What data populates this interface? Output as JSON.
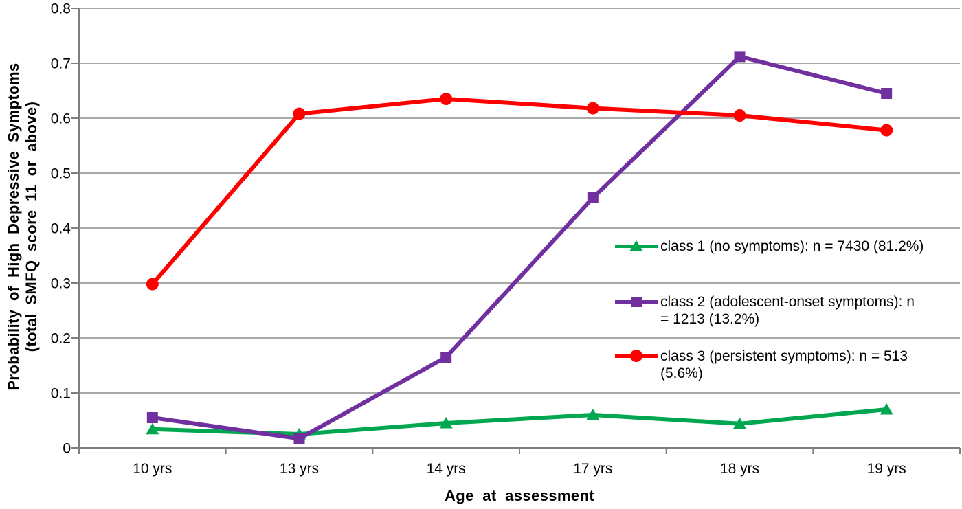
{
  "chart_data": {
    "type": "line",
    "title": "",
    "xlabel": "Age at assessment",
    "ylabel": "Probability of High Depressive Symptoms (total SMFQ score 11 or above)",
    "ylabel_lines": [
      "Probability of High Depressive Symptoms",
      "(total SMFQ score 11 or above)"
    ],
    "categories": [
      "10 yrs",
      "13 yrs",
      "14 yrs",
      "17 yrs",
      "18 yrs",
      "19 yrs"
    ],
    "ylim": [
      0,
      0.8
    ],
    "yticks": [
      0,
      0.1,
      0.2,
      0.3,
      0.4,
      0.5,
      0.6,
      0.7,
      0.8
    ],
    "ytick_labels": [
      "0",
      "0.1",
      "0.2",
      "0.3",
      "0.4",
      "0.5",
      "0.6",
      "0.7",
      "0.8"
    ],
    "grid": true,
    "legend_position": "middle-right",
    "grid_color": "#9b9b9b",
    "axis_color": "#7f7f7f",
    "series": [
      {
        "name": "class 1 (no symptoms): n = 7430 (81.2%)",
        "legend_lines": [
          "class 1 (no symptoms): n = 7430 (81.2%)"
        ],
        "color": "#00A650",
        "marker": "triangle",
        "values": [
          0.034,
          0.025,
          0.045,
          0.06,
          0.044,
          0.07
        ]
      },
      {
        "name": "class 2 (adolescent-onset symptoms): n = 1213 (13.2%)",
        "legend_lines": [
          "class 2 (adolescent-onset symptoms): n",
          "= 1213 (13.2%)"
        ],
        "color": "#7030A0",
        "marker": "square",
        "values": [
          0.055,
          0.017,
          0.165,
          0.455,
          0.712,
          0.645
        ]
      },
      {
        "name": "class 3 (persistent symptoms): n = 513 (5.6%)",
        "legend_lines": [
          "class 3 (persistent symptoms): n = 513",
          "(5.6%)"
        ],
        "color": "#FF0000",
        "marker": "circle",
        "values": [
          0.298,
          0.608,
          0.635,
          0.618,
          0.605,
          0.578
        ]
      }
    ]
  }
}
